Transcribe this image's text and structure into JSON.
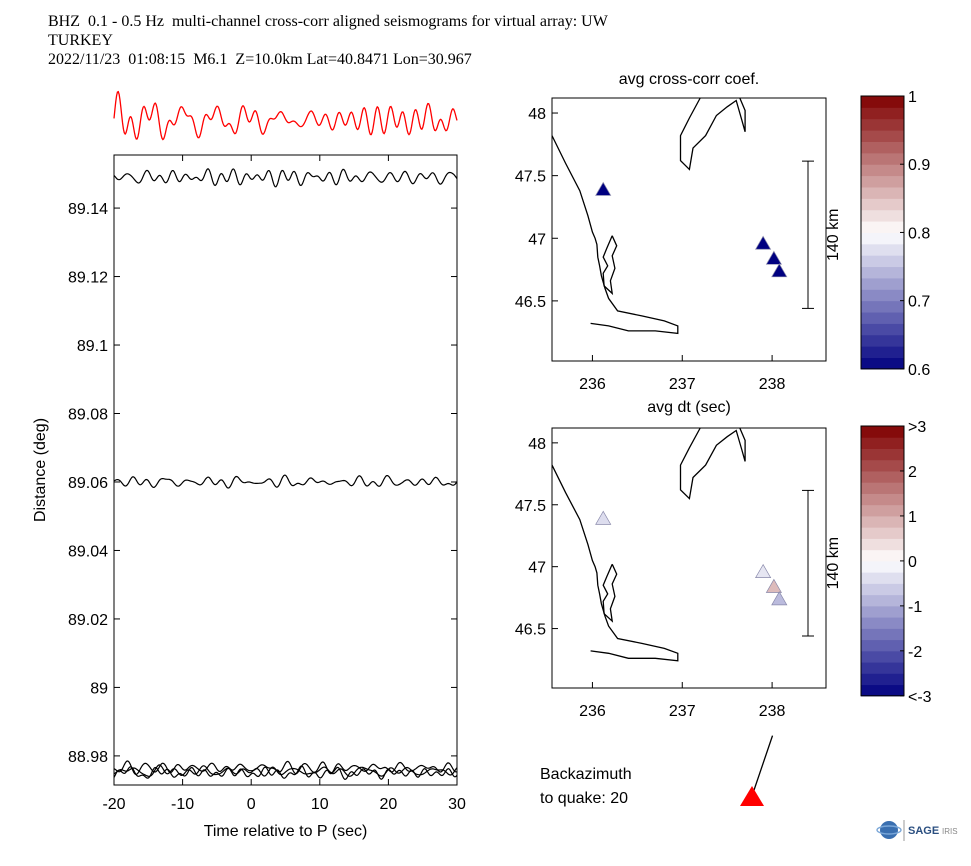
{
  "header": {
    "line1": "BHZ  0.1 - 0.5 Hz  multi-channel cross-corr aligned seismograms for virtual array: UW",
    "line2": "TURKEY",
    "line3": "2022/11/23  01:08:15  M6.1  Z=10.0km Lat=40.8471 Lon=30.967"
  },
  "chart_data": [
    {
      "type": "line",
      "title": "",
      "xlabel": "Time relative to P (sec)",
      "ylabel": "Distance (deg)",
      "xlim": [
        -20,
        30
      ],
      "ylim": [
        88.9715,
        89.1555
      ],
      "xticks": [
        "-20",
        "-10",
        "0",
        "10",
        "20",
        "30"
      ],
      "yticks": [
        "88.98",
        "89",
        "89.02",
        "89.04",
        "89.06",
        "89.08",
        "89.1",
        "89.12",
        "89.14"
      ],
      "series": [
        {
          "offset": 89.149,
          "amp": 0.0015,
          "seed": 3
        },
        {
          "offset": 89.06,
          "amp": 0.0012,
          "seed": 7
        },
        {
          "offset": 88.9765,
          "amp": 0.0012,
          "seed": 11
        },
        {
          "offset": 88.9755,
          "amp": 0.0012,
          "seed": 13
        },
        {
          "offset": 88.975,
          "amp": 0.0012,
          "seed": 17
        }
      ],
      "stack_trace": {
        "color": "#ff0000",
        "seed": 5
      },
      "grid": false
    },
    {
      "type": "scatter",
      "title": "avg cross-corr coef.",
      "xlim": [
        235.55,
        238.6
      ],
      "ylim": [
        46.02,
        48.12
      ],
      "xticks": [
        "236",
        "237",
        "238"
      ],
      "yticks": [
        "46.5",
        "47",
        "47.5",
        "48"
      ],
      "points": [
        {
          "lon": 236.12,
          "lat": 47.39,
          "value": 0.6
        },
        {
          "lon": 237.9,
          "lat": 46.96,
          "value": 0.6
        },
        {
          "lon": 238.02,
          "lat": 46.84,
          "value": 0.6
        },
        {
          "lon": 238.08,
          "lat": 46.74,
          "value": 0.6
        }
      ],
      "scalebar": "140 km",
      "colorbar": {
        "min": 0.6,
        "max": 1,
        "ticks": [
          "0.6",
          "0.7",
          "0.8",
          "0.9",
          "1"
        ]
      }
    },
    {
      "type": "scatter",
      "title": "avg dt (sec)",
      "xlim": [
        235.55,
        238.6
      ],
      "ylim": [
        46.02,
        48.12
      ],
      "xticks": [
        "236",
        "237",
        "238"
      ],
      "yticks": [
        "46.5",
        "47",
        "47.5",
        "48"
      ],
      "points": [
        {
          "lon": 236.12,
          "lat": 47.39,
          "value": -0.4
        },
        {
          "lon": 237.9,
          "lat": 46.96,
          "value": -0.3
        },
        {
          "lon": 238.02,
          "lat": 46.84,
          "value": 0.8
        },
        {
          "lon": 238.08,
          "lat": 46.74,
          "value": -0.8
        }
      ],
      "scalebar": "140 km",
      "colorbar": {
        "min": -3,
        "max": 3,
        "ticks": [
          "<-3",
          "-2",
          "-1",
          "0",
          "1",
          "2",
          ">3"
        ]
      }
    }
  ],
  "backazimuth": {
    "line1": "Backazimuth",
    "line2": "to quake:  20",
    "degrees": 20,
    "marker_color": "#ff0000"
  },
  "logo": {
    "text": "SAGE",
    "subtext": "IRIS"
  }
}
